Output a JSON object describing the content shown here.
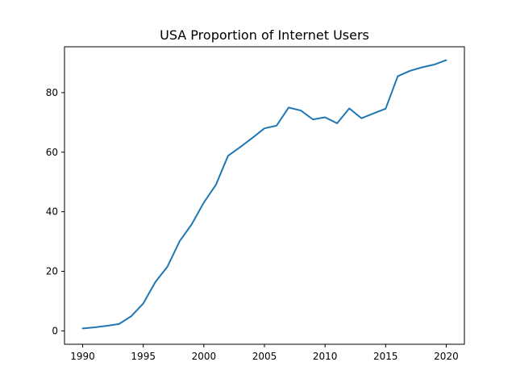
{
  "chart_data": {
    "type": "line",
    "title": "USA Proportion of Internet Users",
    "xlabel": "",
    "ylabel": "",
    "x": [
      1990,
      1991,
      1992,
      1993,
      1994,
      1995,
      1996,
      1997,
      1998,
      1999,
      2000,
      2001,
      2002,
      2003,
      2004,
      2005,
      2006,
      2007,
      2008,
      2009,
      2010,
      2011,
      2012,
      2013,
      2014,
      2015,
      2016,
      2017,
      2018,
      2019,
      2020
    ],
    "series": [
      {
        "color": "#1f77b4",
        "values": [
          0.8,
          1.2,
          1.7,
          2.3,
          4.9,
          9.2,
          16.4,
          21.6,
          30.1,
          35.8,
          43.1,
          49.1,
          58.8,
          61.7,
          64.8,
          68.0,
          68.9,
          75.0,
          74.0,
          71.0,
          71.7,
          69.7,
          74.7,
          71.4,
          73.0,
          74.6,
          85.5,
          87.3,
          88.5,
          89.4,
          90.9
        ]
      }
    ],
    "xlim": [
      1988.5,
      2021.5
    ],
    "ylim": [
      -4.5,
      95.4
    ],
    "xticks": [
      1990,
      1995,
      2000,
      2005,
      2010,
      2015,
      2020
    ],
    "yticks": [
      0,
      20,
      40,
      60,
      80
    ],
    "grid": false,
    "legend": "none"
  }
}
